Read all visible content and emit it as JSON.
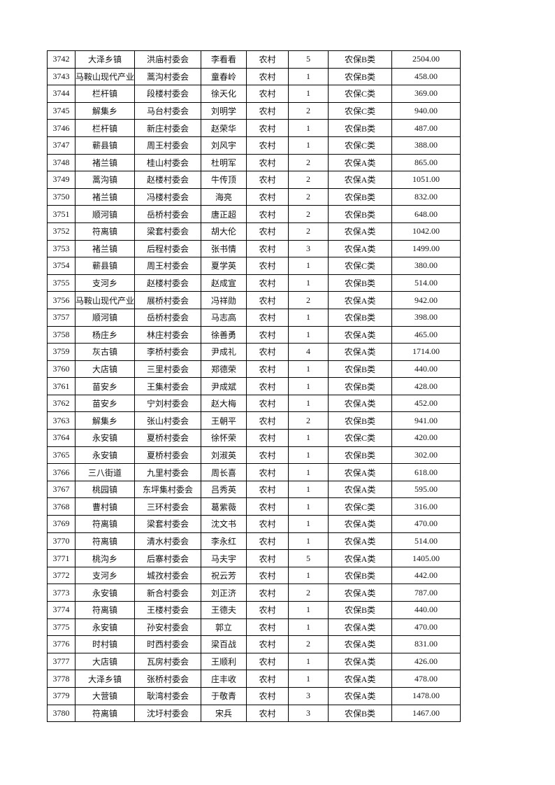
{
  "rows": [
    [
      "3742",
      "大泽乡镇",
      "洪庙村委会",
      "李看看",
      "农村",
      "5",
      "农保B类",
      "2504.00"
    ],
    [
      "3743",
      "马鞍山现代产业",
      "蒿沟村委会",
      "童春岭",
      "农村",
      "1",
      "农保B类",
      "458.00"
    ],
    [
      "3744",
      "栏杆镇",
      "段楼村委会",
      "徐天化",
      "农村",
      "1",
      "农保C类",
      "369.00"
    ],
    [
      "3745",
      "解集乡",
      "马台村委会",
      "刘明学",
      "农村",
      "2",
      "农保C类",
      "940.00"
    ],
    [
      "3746",
      "栏杆镇",
      "新庄村委会",
      "赵荣华",
      "农村",
      "1",
      "农保B类",
      "487.00"
    ],
    [
      "3747",
      "蕲县镇",
      "周王村委会",
      "刘风宇",
      "农村",
      "1",
      "农保C类",
      "388.00"
    ],
    [
      "3748",
      "褚兰镇",
      "桂山村委会",
      "杜明军",
      "农村",
      "2",
      "农保A类",
      "865.00"
    ],
    [
      "3749",
      "蒿沟镇",
      "赵楼村委会",
      "牛传顶",
      "农村",
      "2",
      "农保A类",
      "1051.00"
    ],
    [
      "3750",
      "褚兰镇",
      "冯楼村委会",
      "海亮",
      "农村",
      "2",
      "农保B类",
      "832.00"
    ],
    [
      "3751",
      "顺河镇",
      "岳桥村委会",
      "唐正超",
      "农村",
      "2",
      "农保B类",
      "648.00"
    ],
    [
      "3752",
      "符离镇",
      "梁套村委会",
      "胡大伦",
      "农村",
      "2",
      "农保A类",
      "1042.00"
    ],
    [
      "3753",
      "褚兰镇",
      "后程村委会",
      "张书情",
      "农村",
      "3",
      "农保A类",
      "1499.00"
    ],
    [
      "3754",
      "蕲县镇",
      "周王村委会",
      "夏学英",
      "农村",
      "1",
      "农保C类",
      "380.00"
    ],
    [
      "3755",
      "支河乡",
      "赵楼村委会",
      "赵成宣",
      "农村",
      "1",
      "农保B类",
      "514.00"
    ],
    [
      "3756",
      "马鞍山现代产业",
      "展桥村委会",
      "冯祥勋",
      "农村",
      "2",
      "农保A类",
      "942.00"
    ],
    [
      "3757",
      "顺河镇",
      "岳桥村委会",
      "马志高",
      "农村",
      "1",
      "农保B类",
      "398.00"
    ],
    [
      "3758",
      "杨庄乡",
      "林庄村委会",
      "徐善勇",
      "农村",
      "1",
      "农保A类",
      "465.00"
    ],
    [
      "3759",
      "灰古镇",
      "李桥村委会",
      "尹成礼",
      "农村",
      "4",
      "农保A类",
      "1714.00"
    ],
    [
      "3760",
      "大店镇",
      "三里村委会",
      "郑德荣",
      "农村",
      "1",
      "农保B类",
      "440.00"
    ],
    [
      "3761",
      "苗安乡",
      "王集村委会",
      "尹成斌",
      "农村",
      "1",
      "农保B类",
      "428.00"
    ],
    [
      "3762",
      "苗安乡",
      "宁刘村委会",
      "赵大梅",
      "农村",
      "1",
      "农保A类",
      "452.00"
    ],
    [
      "3763",
      "解集乡",
      "张山村委会",
      "王朝平",
      "农村",
      "2",
      "农保B类",
      "941.00"
    ],
    [
      "3764",
      "永安镇",
      "夏桥村委会",
      "徐怀荣",
      "农村",
      "1",
      "农保C类",
      "420.00"
    ],
    [
      "3765",
      "永安镇",
      "夏桥村委会",
      "刘淑英",
      "农村",
      "1",
      "农保B类",
      "302.00"
    ],
    [
      "3766",
      "三八街道",
      "九里村委会",
      "周长喜",
      "农村",
      "1",
      "农保A类",
      "618.00"
    ],
    [
      "3767",
      "桃园镇",
      "东坪集村委会",
      "吕秀英",
      "农村",
      "1",
      "农保A类",
      "595.00"
    ],
    [
      "3768",
      "曹村镇",
      "三环村委会",
      "葛紫薇",
      "农村",
      "1",
      "农保C类",
      "316.00"
    ],
    [
      "3769",
      "符离镇",
      "梁套村委会",
      "沈文书",
      "农村",
      "1",
      "农保A类",
      "470.00"
    ],
    [
      "3770",
      "符离镇",
      "清水村委会",
      "李永红",
      "农村",
      "1",
      "农保A类",
      "514.00"
    ],
    [
      "3771",
      "桃沟乡",
      "后寨村委会",
      "马夫宇",
      "农村",
      "5",
      "农保A类",
      "1405.00"
    ],
    [
      "3772",
      "支河乡",
      "城孜村委会",
      "祝云芳",
      "农村",
      "1",
      "农保B类",
      "442.00"
    ],
    [
      "3773",
      "永安镇",
      "新合村委会",
      "刘正济",
      "农村",
      "2",
      "农保A类",
      "787.00"
    ],
    [
      "3774",
      "符离镇",
      "王楼村委会",
      "王德夫",
      "农村",
      "1",
      "农保B类",
      "440.00"
    ],
    [
      "3775",
      "永安镇",
      "孙安村委会",
      "郭立",
      "农村",
      "1",
      "农保A类",
      "470.00"
    ],
    [
      "3776",
      "时村镇",
      "时西村委会",
      "梁百战",
      "农村",
      "2",
      "农保A类",
      "831.00"
    ],
    [
      "3777",
      "大店镇",
      "瓦房村委会",
      "王顺利",
      "农村",
      "1",
      "农保A类",
      "426.00"
    ],
    [
      "3778",
      "大泽乡镇",
      "张桥村委会",
      "庄丰收",
      "农村",
      "1",
      "农保A类",
      "478.00"
    ],
    [
      "3779",
      "大营镇",
      "耿湾村委会",
      "于敬青",
      "农村",
      "3",
      "农保A类",
      "1478.00"
    ],
    [
      "3780",
      "符离镇",
      "沈圩村委会",
      "宋兵",
      "农村",
      "3",
      "农保B类",
      "1467.00"
    ]
  ]
}
